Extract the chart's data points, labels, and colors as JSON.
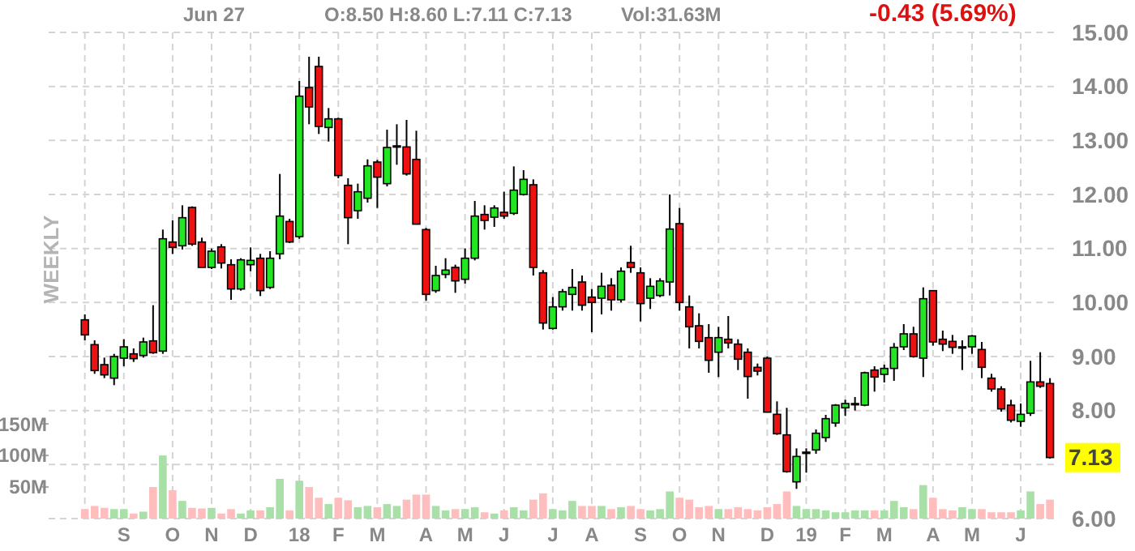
{
  "chart_data": {
    "type": "candlestick",
    "annotations": [
      "Jun 27",
      "O:8.50 H:8.60 L:7.11 C:7.13",
      "Vol:31.63M",
      "-0.43 (5.69%)",
      "7.13",
      "WEEKLY"
    ],
    "x": [
      "2017-07-31",
      "2017-08-07",
      "2017-08-14",
      "2017-08-21",
      "2017-08-28",
      "2017-09-04",
      "2017-09-11",
      "2017-09-18",
      "2017-09-25",
      "2017-10-02",
      "2017-10-09",
      "2017-10-16",
      "2017-10-23",
      "2017-10-30",
      "2017-11-06",
      "2017-11-13",
      "2017-11-20",
      "2017-11-27",
      "2017-12-04",
      "2017-12-11",
      "2017-12-18",
      "2017-12-25",
      "2018-01-01",
      "2018-01-08",
      "2018-01-15",
      "2018-01-22",
      "2018-01-29",
      "2018-02-05",
      "2018-02-12",
      "2018-02-19",
      "2018-02-26",
      "2018-03-05",
      "2018-03-12",
      "2018-03-19",
      "2018-03-26",
      "2018-04-02",
      "2018-04-09",
      "2018-04-16",
      "2018-04-23",
      "2018-04-30",
      "2018-05-07",
      "2018-05-14",
      "2018-05-21",
      "2018-05-28",
      "2018-06-04",
      "2018-06-11",
      "2018-06-18",
      "2018-06-25",
      "2018-07-02",
      "2018-07-09",
      "2018-07-16",
      "2018-07-23",
      "2018-07-30",
      "2018-08-06",
      "2018-08-13",
      "2018-08-20",
      "2018-08-27",
      "2018-09-03",
      "2018-09-10",
      "2018-09-17",
      "2018-09-24",
      "2018-10-01",
      "2018-10-08",
      "2018-10-15",
      "2018-10-22",
      "2018-10-29",
      "2018-11-05",
      "2018-11-12",
      "2018-11-19",
      "2018-11-26",
      "2018-12-03",
      "2018-12-10",
      "2018-12-17",
      "2018-12-24",
      "2018-12-31",
      "2019-01-07",
      "2019-01-14",
      "2019-01-21",
      "2019-01-28",
      "2019-02-04",
      "2019-02-11",
      "2019-02-18",
      "2019-02-25",
      "2019-03-04",
      "2019-03-11",
      "2019-03-18",
      "2019-03-25",
      "2019-04-01",
      "2019-04-08",
      "2019-04-15",
      "2019-04-22",
      "2019-04-29",
      "2019-05-06",
      "2019-05-13",
      "2019-05-20",
      "2019-05-27",
      "2019-06-03",
      "2019-06-10",
      "2019-06-17",
      "2019-06-24"
    ],
    "ohlc": [
      [
        9.68,
        9.78,
        9.3,
        9.4
      ],
      [
        9.22,
        9.3,
        8.68,
        8.74
      ],
      [
        8.85,
        8.98,
        8.6,
        8.66
      ],
      [
        8.6,
        9.05,
        8.47,
        9.0
      ],
      [
        8.97,
        9.32,
        8.82,
        9.18
      ],
      [
        9.05,
        9.15,
        8.9,
        8.96
      ],
      [
        9.02,
        9.35,
        8.98,
        9.27
      ],
      [
        9.29,
        9.95,
        9.05,
        9.07
      ],
      [
        9.1,
        11.35,
        9.05,
        11.18
      ],
      [
        11.12,
        11.52,
        10.9,
        11.02
      ],
      [
        11.05,
        11.8,
        10.98,
        11.57
      ],
      [
        11.76,
        11.78,
        11.05,
        11.08
      ],
      [
        11.12,
        11.2,
        10.65,
        10.65
      ],
      [
        10.65,
        11.0,
        10.62,
        10.95
      ],
      [
        11.03,
        11.08,
        10.63,
        10.73
      ],
      [
        10.7,
        10.8,
        10.05,
        10.25
      ],
      [
        10.25,
        10.82,
        10.22,
        10.79
      ],
      [
        10.7,
        11.02,
        10.58,
        10.78
      ],
      [
        10.82,
        10.9,
        10.12,
        10.22
      ],
      [
        10.28,
        10.95,
        10.25,
        10.82
      ],
      [
        10.9,
        12.38,
        10.8,
        11.6
      ],
      [
        11.5,
        11.55,
        11.1,
        11.12
      ],
      [
        11.22,
        14.1,
        11.18,
        13.82
      ],
      [
        13.98,
        14.55,
        13.3,
        13.62
      ],
      [
        14.37,
        14.55,
        13.12,
        13.26
      ],
      [
        13.24,
        13.6,
        12.98,
        13.4
      ],
      [
        13.4,
        13.42,
        12.3,
        12.35
      ],
      [
        12.17,
        12.3,
        11.08,
        11.57
      ],
      [
        11.7,
        12.2,
        11.55,
        12.05
      ],
      [
        11.93,
        12.65,
        11.85,
        12.53
      ],
      [
        12.6,
        12.64,
        11.75,
        12.32
      ],
      [
        12.2,
        13.2,
        12.15,
        12.87
      ],
      [
        12.88,
        13.3,
        12.55,
        12.9
      ],
      [
        12.88,
        13.38,
        12.35,
        12.38
      ],
      [
        12.65,
        13.18,
        11.45,
        11.45
      ],
      [
        11.35,
        11.38,
        10.03,
        10.15
      ],
      [
        10.22,
        10.68,
        10.18,
        10.5
      ],
      [
        10.52,
        10.82,
        10.45,
        10.6
      ],
      [
        10.65,
        10.7,
        10.18,
        10.4
      ],
      [
        10.43,
        11.0,
        10.35,
        10.82
      ],
      [
        10.82,
        11.88,
        10.78,
        11.6
      ],
      [
        11.63,
        11.8,
        11.35,
        11.52
      ],
      [
        11.58,
        11.8,
        11.4,
        11.75
      ],
      [
        11.67,
        12.05,
        11.55,
        11.6
      ],
      [
        11.65,
        12.52,
        11.62,
        12.08
      ],
      [
        12.0,
        12.45,
        11.98,
        12.28
      ],
      [
        12.18,
        12.28,
        10.5,
        10.65
      ],
      [
        10.55,
        10.6,
        9.5,
        9.62
      ],
      [
        9.52,
        10.1,
        9.5,
        9.92
      ],
      [
        9.92,
        10.25,
        9.85,
        10.2
      ],
      [
        10.15,
        10.62,
        9.85,
        10.28
      ],
      [
        10.38,
        10.5,
        9.85,
        9.95
      ],
      [
        10.1,
        10.25,
        9.45,
        10.0
      ],
      [
        10.08,
        10.55,
        9.78,
        10.3
      ],
      [
        10.32,
        10.45,
        9.85,
        10.05
      ],
      [
        10.05,
        10.65,
        10.0,
        10.58
      ],
      [
        10.74,
        11.05,
        10.55,
        10.65
      ],
      [
        10.55,
        10.65,
        9.65,
        9.98
      ],
      [
        10.08,
        10.45,
        9.88,
        10.3
      ],
      [
        10.13,
        10.45,
        10.1,
        10.4
      ],
      [
        10.38,
        12.0,
        10.13,
        11.36
      ],
      [
        11.46,
        11.75,
        9.85,
        10.0
      ],
      [
        9.92,
        10.13,
        9.15,
        9.55
      ],
      [
        9.57,
        9.8,
        9.15,
        9.28
      ],
      [
        9.35,
        9.6,
        8.7,
        8.93
      ],
      [
        9.08,
        9.55,
        8.62,
        9.35
      ],
      [
        9.32,
        9.75,
        9.15,
        9.25
      ],
      [
        9.23,
        9.32,
        8.75,
        8.95
      ],
      [
        9.08,
        9.15,
        8.22,
        8.63
      ],
      [
        8.8,
        8.87,
        8.65,
        8.73
      ],
      [
        8.97,
        9.0,
        7.97,
        7.97
      ],
      [
        7.93,
        8.17,
        7.55,
        7.57
      ],
      [
        7.55,
        8.05,
        6.85,
        6.87
      ],
      [
        6.68,
        7.3,
        6.55,
        7.15
      ],
      [
        7.21,
        7.3,
        6.85,
        7.23
      ],
      [
        7.27,
        7.65,
        7.2,
        7.58
      ],
      [
        7.5,
        7.92,
        7.42,
        7.85
      ],
      [
        7.77,
        8.12,
        7.7,
        8.1
      ],
      [
        8.05,
        8.2,
        7.9,
        8.13
      ],
      [
        8.11,
        8.25,
        8.0,
        8.13
      ],
      [
        8.1,
        8.72,
        8.08,
        8.7
      ],
      [
        8.75,
        8.82,
        8.35,
        8.62
      ],
      [
        8.67,
        8.85,
        8.52,
        8.78
      ],
      [
        8.78,
        9.25,
        8.55,
        9.17
      ],
      [
        9.18,
        9.6,
        9.12,
        9.42
      ],
      [
        9.42,
        9.55,
        8.98,
        9.0
      ],
      [
        8.97,
        10.28,
        8.62,
        10.07
      ],
      [
        10.22,
        10.22,
        9.2,
        9.27
      ],
      [
        9.32,
        9.48,
        9.1,
        9.23
      ],
      [
        9.28,
        9.4,
        9.05,
        9.17
      ],
      [
        9.16,
        9.3,
        8.75,
        9.18
      ],
      [
        9.18,
        9.4,
        9.05,
        9.38
      ],
      [
        9.13,
        9.27,
        8.6,
        8.8
      ],
      [
        8.6,
        8.68,
        8.35,
        8.4
      ],
      [
        8.4,
        8.45,
        7.98,
        8.03
      ],
      [
        8.1,
        8.2,
        7.78,
        7.82
      ],
      [
        7.8,
        8.13,
        7.7,
        7.93
      ],
      [
        7.95,
        8.92,
        7.9,
        8.53
      ],
      [
        8.53,
        9.08,
        8.42,
        8.45
      ],
      [
        8.5,
        8.6,
        7.11,
        7.13
      ]
    ],
    "colors": [
      "#ee1111",
      "#ee1111",
      "#ee1111",
      "#22e622",
      "#22e622",
      "#ee1111",
      "#22e622",
      "#ee1111",
      "#22e622",
      "#ee1111",
      "#22e622",
      "#ee1111",
      "#ee1111",
      "#22e622",
      "#ee1111",
      "#ee1111",
      "#22e622",
      "#22e622",
      "#ee1111",
      "#22e622",
      "#22e622",
      "#ee1111",
      "#22e622",
      "#ee1111",
      "#ee1111",
      "#22e622",
      "#ee1111",
      "#ee1111",
      "#22e622",
      "#22e622",
      "#ee1111",
      "#22e622",
      "#22e622",
      "#ee1111",
      "#ee1111",
      "#ee1111",
      "#22e622",
      "#22e622",
      "#ee1111",
      "#22e622",
      "#22e622",
      "#ee1111",
      "#22e622",
      "#ee1111",
      "#22e622",
      "#22e622",
      "#ee1111",
      "#ee1111",
      "#22e622",
      "#22e622",
      "#22e622",
      "#ee1111",
      "#ee1111",
      "#22e622",
      "#ee1111",
      "#22e622",
      "#ee1111",
      "#ee1111",
      "#22e622",
      "#22e622",
      "#22e622",
      "#ee1111",
      "#ee1111",
      "#ee1111",
      "#ee1111",
      "#22e622",
      "#ee1111",
      "#ee1111",
      "#ee1111",
      "#ee1111",
      "#ee1111",
      "#ee1111",
      "#ee1111",
      "#22e622",
      "#22e622",
      "#22e622",
      "#22e622",
      "#22e622",
      "#22e622",
      "#22e622",
      "#22e622",
      "#ee1111",
      "#22e622",
      "#22e622",
      "#22e622",
      "#ee1111",
      "#22e622",
      "#ee1111",
      "#ee1111",
      "#ee1111",
      "#22e622",
      "#22e622",
      "#ee1111",
      "#ee1111",
      "#ee1111",
      "#ee1111",
      "#22e622",
      "#22e622",
      "#ee1111",
      "#ee1111"
    ],
    "series": [
      {
        "type": "bar",
        "axis": "y2",
        "values": [
          15,
          20,
          17,
          15,
          15,
          8,
          11,
          50,
          100,
          45,
          28,
          17,
          16,
          17,
          8,
          15,
          8,
          13,
          13,
          18,
          63,
          13,
          60,
          50,
          33,
          23,
          33,
          29,
          18,
          20,
          18,
          23,
          20,
          30,
          38,
          38,
          20,
          13,
          15,
          15,
          18,
          10,
          8,
          13,
          18,
          13,
          30,
          40,
          15,
          13,
          28,
          20,
          20,
          20,
          15,
          18,
          20,
          15,
          13,
          15,
          43,
          33,
          30,
          18,
          20,
          15,
          15,
          18,
          15,
          13,
          18,
          23,
          43,
          20,
          15,
          15,
          13,
          10,
          10,
          13,
          13,
          13,
          13,
          28,
          18,
          15,
          53,
          33,
          15,
          13,
          18,
          15,
          15,
          10,
          10,
          10,
          13,
          43,
          23,
          30
        ],
        "colors": [
          "#ffbdbd",
          "#ffbdbd",
          "#ffbdbd",
          "#a8e0a8",
          "#a8e0a8",
          "#ffbdbd",
          "#a8e0a8",
          "#ffbdbd",
          "#a8e0a8",
          "#ffbdbd",
          "#a8e0a8",
          "#ffbdbd",
          "#ffbdbd",
          "#a8e0a8",
          "#ffbdbd",
          "#ffbdbd",
          "#a8e0a8",
          "#a8e0a8",
          "#ffbdbd",
          "#a8e0a8",
          "#a8e0a8",
          "#ffbdbd",
          "#a8e0a8",
          "#ffbdbd",
          "#ffbdbd",
          "#a8e0a8",
          "#ffbdbd",
          "#ffbdbd",
          "#a8e0a8",
          "#a8e0a8",
          "#ffbdbd",
          "#a8e0a8",
          "#a8e0a8",
          "#ffbdbd",
          "#ffbdbd",
          "#ffbdbd",
          "#a8e0a8",
          "#a8e0a8",
          "#ffbdbd",
          "#a8e0a8",
          "#a8e0a8",
          "#ffbdbd",
          "#a8e0a8",
          "#ffbdbd",
          "#a8e0a8",
          "#a8e0a8",
          "#ffbdbd",
          "#ffbdbd",
          "#a8e0a8",
          "#a8e0a8",
          "#a8e0a8",
          "#ffbdbd",
          "#ffbdbd",
          "#a8e0a8",
          "#ffbdbd",
          "#a8e0a8",
          "#ffbdbd",
          "#ffbdbd",
          "#a8e0a8",
          "#a8e0a8",
          "#a8e0a8",
          "#ffbdbd",
          "#ffbdbd",
          "#ffbdbd",
          "#ffbdbd",
          "#a8e0a8",
          "#ffbdbd",
          "#ffbdbd",
          "#ffbdbd",
          "#ffbdbd",
          "#ffbdbd",
          "#ffbdbd",
          "#ffbdbd",
          "#a8e0a8",
          "#a8e0a8",
          "#a8e0a8",
          "#a8e0a8",
          "#a8e0a8",
          "#a8e0a8",
          "#a8e0a8",
          "#a8e0a8",
          "#ffbdbd",
          "#a8e0a8",
          "#a8e0a8",
          "#a8e0a8",
          "#ffbdbd",
          "#a8e0a8",
          "#ffbdbd",
          "#ffbdbd",
          "#ffbdbd",
          "#a8e0a8",
          "#a8e0a8",
          "#ffbdbd",
          "#ffbdbd",
          "#ffbdbd",
          "#ffbdbd",
          "#a8e0a8",
          "#a8e0a8",
          "#ffbdbd",
          "#ffbdbd"
        ]
      }
    ],
    "xlim": [
      "2017-07-05",
      "2019-06-28"
    ],
    "xticks": [
      {
        "value": "2017-07-31",
        "label": null
      },
      {
        "value": "2017-08-28",
        "label": "S"
      },
      {
        "value": "2017-10-02",
        "label": "O"
      },
      {
        "value": "2017-10-30",
        "label": "N"
      },
      {
        "value": "2017-11-27",
        "label": "D"
      },
      {
        "value": "2018-01-01",
        "label": "18"
      },
      {
        "value": "2018-01-29",
        "label": "F"
      },
      {
        "value": "2018-02-26",
        "label": "M"
      },
      {
        "value": "2018-04-02",
        "label": "A"
      },
      {
        "value": "2018-04-30",
        "label": "M"
      },
      {
        "value": "2018-05-28",
        "label": "J"
      },
      {
        "value": "2018-07-02",
        "label": "J"
      },
      {
        "value": "2018-07-30",
        "label": "A"
      },
      {
        "value": "2018-09-03",
        "label": "S"
      },
      {
        "value": "2018-10-01",
        "label": "O"
      },
      {
        "value": "2018-10-29",
        "label": "N"
      },
      {
        "value": "2018-12-03",
        "label": "D"
      },
      {
        "value": "2018-12-31",
        "label": "19"
      },
      {
        "value": "2019-01-28",
        "label": "F"
      },
      {
        "value": "2019-02-25",
        "label": "M"
      },
      {
        "value": "2019-04-01",
        "label": "A"
      },
      {
        "value": "2019-04-29",
        "label": "M"
      },
      {
        "value": "2019-06-03",
        "label": "J"
      }
    ],
    "ylim": [
      6,
      15
    ],
    "yticks": [
      {
        "value": 6,
        "label": "6.00"
      },
      {
        "value": 7,
        "label": null
      },
      {
        "value": 8,
        "label": "8.00"
      },
      {
        "value": 9,
        "label": "9.00"
      },
      {
        "value": 10,
        "label": "10.00"
      },
      {
        "value": 11,
        "label": "11.00"
      },
      {
        "value": 12,
        "label": "12.00"
      },
      {
        "value": 13,
        "label": "13.00"
      },
      {
        "value": 14,
        "label": "14.00"
      },
      {
        "value": 15,
        "label": "15.00"
      }
    ],
    "y2lim": [
      0,
      770
    ],
    "y2ticks": [
      {
        "value": 50,
        "label": "50M"
      },
      {
        "value": 100,
        "label": "100M"
      },
      {
        "value": 150,
        "label": "150M"
      }
    ],
    "grid": true
  }
}
